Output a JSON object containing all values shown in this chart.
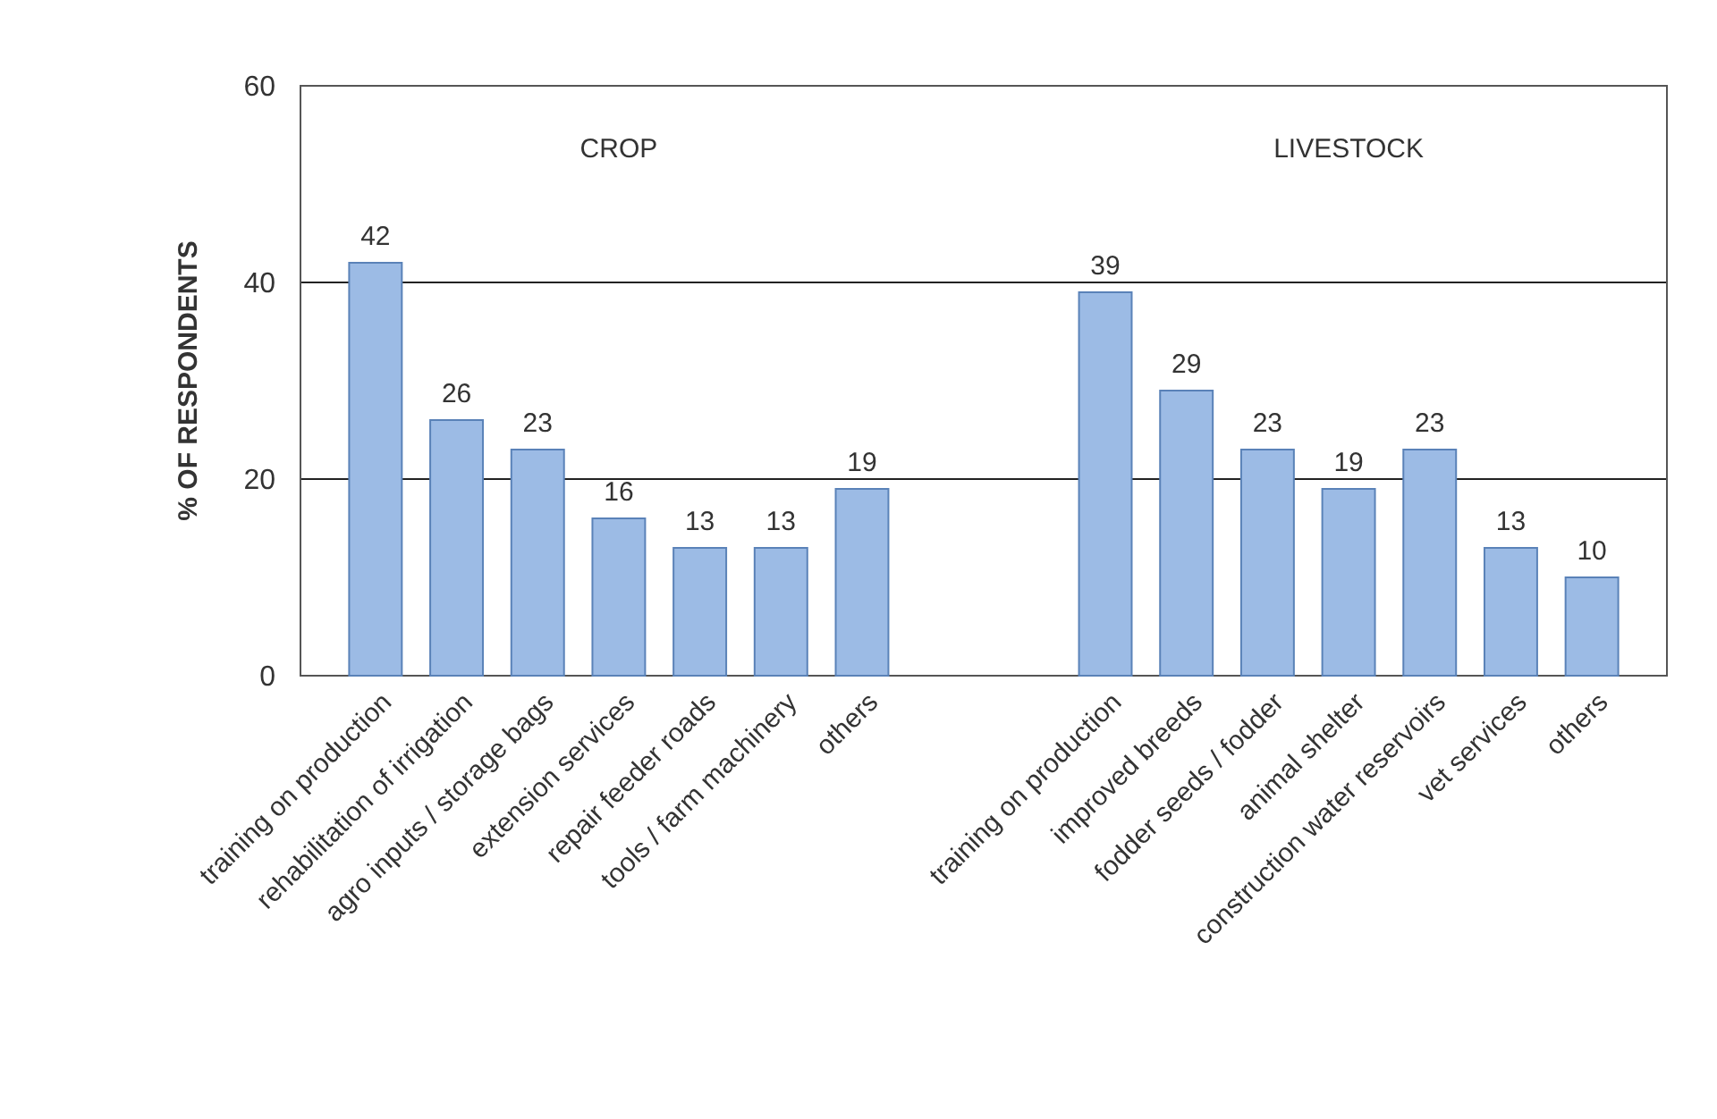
{
  "chart_data": {
    "type": "bar",
    "ylabel": "% OF RESPONDENTS",
    "categories": [
      "training on production",
      "rehabilitation of irrigation",
      "agro inputs / storage bags",
      "extension services",
      "repair feeder roads",
      "tools / farm machinery",
      "others",
      null,
      null,
      "training on production",
      "improved breeds",
      "fodder seeds / fodder",
      "animal shelter",
      "construction water reservoirs",
      "vet services",
      "others"
    ],
    "values": [
      42,
      26,
      23,
      16,
      13,
      13,
      19,
      null,
      null,
      39,
      29,
      23,
      19,
      23,
      13,
      10
    ],
    "color": "#9cbbe5",
    "ylim": [
      0,
      60
    ],
    "yticks": [
      0,
      20,
      40,
      60
    ],
    "grid": "y",
    "data_labels": true,
    "annotations": [
      "CROP",
      "LIVESTOCK"
    ]
  }
}
